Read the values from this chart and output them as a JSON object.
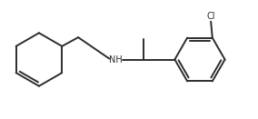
{
  "line_color": "#2d2d2d",
  "line_width": 1.4,
  "text_color": "#2d2d2d",
  "background": "#ffffff",
  "nh_label": "NH",
  "cl_label": "Cl",
  "nh_fontsize": 7.0,
  "cl_fontsize": 7.0,
  "figsize": [
    2.84,
    1.31
  ],
  "dpi": 100
}
